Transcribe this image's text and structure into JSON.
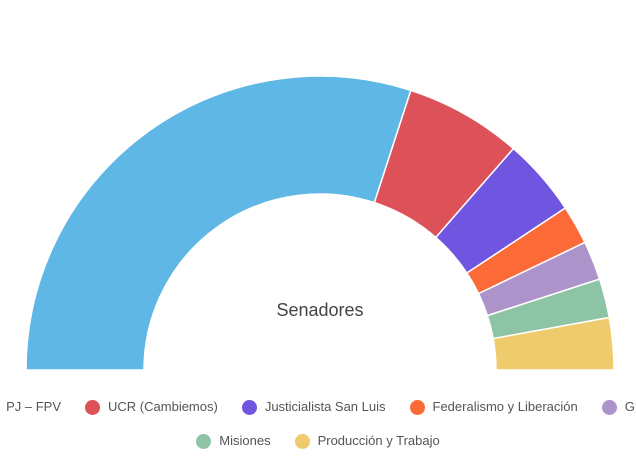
{
  "chart_data": {
    "type": "pie",
    "subtype": "semicircle-donut",
    "title": "Senadores",
    "series": [
      {
        "name": "PJ – FPV",
        "value": 42,
        "color": "#5eb7e4"
      },
      {
        "name": "UCR (Cambiemos)",
        "value": 9,
        "color": "#dc5258"
      },
      {
        "name": "Justicialista San Luis",
        "value": 6,
        "color": "#6f55e0"
      },
      {
        "name": "Federalismo y Liberación",
        "value": 3,
        "color": "#fc6a38"
      },
      {
        "name": "GEN",
        "value": 3,
        "color": "#ac93c9"
      },
      {
        "name": "Misiones",
        "value": 3,
        "color": "#8dc4a6"
      },
      {
        "name": "Producción y Trabajo",
        "value": 4,
        "color": "#eecb6c"
      }
    ],
    "legend_position": "bottom"
  }
}
